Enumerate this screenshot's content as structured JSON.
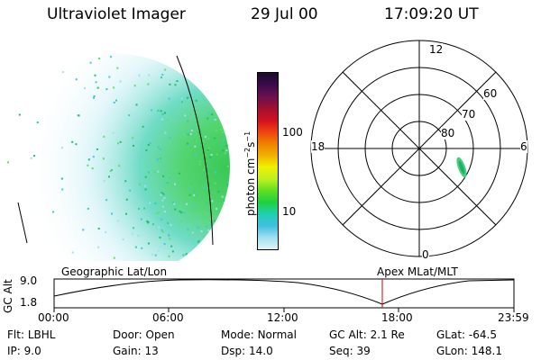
{
  "header": {
    "title": "Ultraviolet Imager",
    "date": "29 Jul 00",
    "time": "17:09:20 UT"
  },
  "colorbar": {
    "unit_label": "photon cm",
    "unit_exp1": "−2",
    "unit_mid": "s",
    "unit_exp2": "−1",
    "ticks": [
      "100",
      "10"
    ],
    "colors": [
      "#1a0a2a",
      "#3a0a4a",
      "#6a1050",
      "#a01030",
      "#d01020",
      "#f04010",
      "#f08000",
      "#f0b000",
      "#f0f000",
      "#c0f020",
      "#60e020",
      "#20d040",
      "#20d0b0",
      "#40c0e0",
      "#a0e0f0",
      "#e0f4f8"
    ]
  },
  "polar": {
    "hour_labels": {
      "top": "12",
      "left": "18",
      "right": "6",
      "bottom": "0"
    },
    "lat_labels": [
      "60",
      "70",
      "80"
    ]
  },
  "timeline": {
    "left_label": "Geographic Lat/Lon",
    "right_label": "Apex MLat/MLT",
    "axis_title": "GC Alt",
    "y_ticks": [
      "9.0",
      "1.8"
    ],
    "x_ticks": [
      "00:00",
      "06:00",
      "12:00",
      "18:00",
      "23:59"
    ],
    "marker_time": "17:09",
    "marker_color": "#d00000"
  },
  "info": {
    "row1": [
      {
        "label": "Flt:",
        "value": "LBHL"
      },
      {
        "label": "Door:",
        "value": "Open"
      },
      {
        "label": "Mode:",
        "value": "Normal"
      },
      {
        "label": "GC Alt:",
        "value": "2.1 Re"
      },
      {
        "label": "GLat:",
        "value": "-64.5"
      }
    ],
    "row2": [
      {
        "label": "IP:",
        "value": "9.0"
      },
      {
        "label": "Gain:",
        "value": "13"
      },
      {
        "label": "Dsp:",
        "value": "14.0"
      },
      {
        "label": "Seq:",
        "value": "39"
      },
      {
        "label": "GLon:",
        "value": "148.1"
      }
    ]
  }
}
